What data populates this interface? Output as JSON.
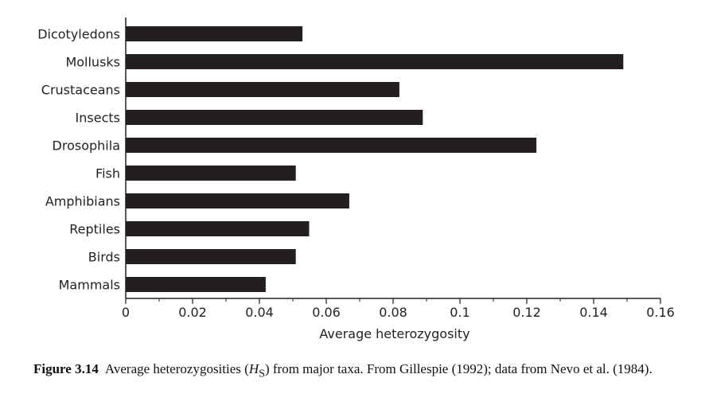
{
  "chart_data": {
    "type": "bar",
    "orientation": "horizontal",
    "categories": [
      "Dicotyledons",
      "Mollusks",
      "Crustaceans",
      "Insects",
      "Drosophila",
      "Fish",
      "Amphibians",
      "Reptiles",
      "Birds",
      "Mammals"
    ],
    "values": [
      0.053,
      0.149,
      0.082,
      0.089,
      0.123,
      0.051,
      0.067,
      0.055,
      0.051,
      0.042
    ],
    "xlabel": "Average heterozygosity",
    "ylabel": "",
    "xlim": [
      0,
      0.16
    ],
    "xticks": [
      "0",
      "0.02",
      "0.04",
      "0.06",
      "0.08",
      "0.1",
      "0.12",
      "0.14",
      "0.16"
    ],
    "grid": false,
    "bar_color": "#231f20"
  },
  "caption": {
    "label": "Figure 3.14",
    "text_before": "Average heterozygosities (",
    "symbol": "H",
    "subscript": "S",
    "text_after": ") from major taxa. From Gillespie (1992); data from Nevo et al. (1984)."
  }
}
